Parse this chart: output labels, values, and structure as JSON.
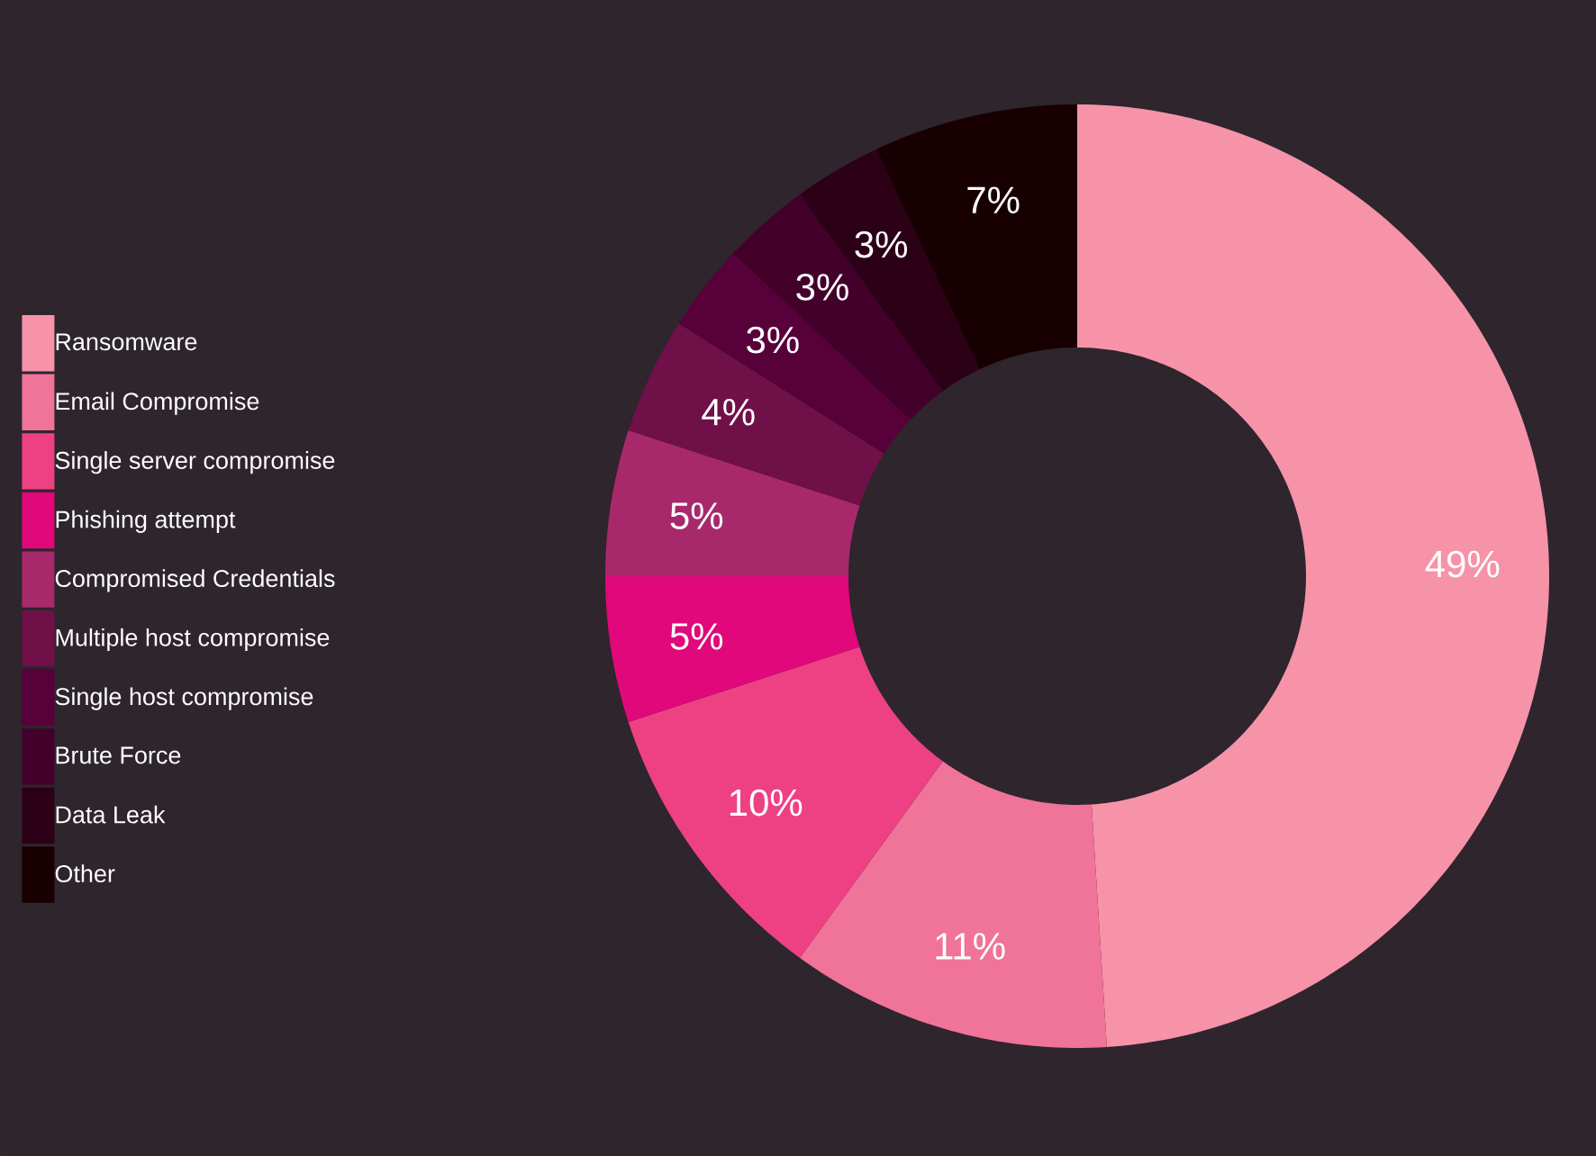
{
  "chart_data": {
    "type": "donut",
    "categories": [
      "Ransomware",
      "Email Compromise",
      "Single server compromise",
      "Phishing attempt",
      "Compromised Credentials",
      "Multiple host compromise",
      "Single host compromise",
      "Brute Force",
      "Data Leak",
      "Other"
    ],
    "values": [
      49,
      11,
      10,
      5,
      5,
      4,
      3,
      3,
      3,
      7
    ],
    "value_labels": [
      "49%",
      "11%",
      "10%",
      "5%",
      "5%",
      "4%",
      "3%",
      "3%",
      "3%",
      "7%"
    ],
    "colors": [
      "#f693a9",
      "#f07399",
      "#ee4183",
      "#e0087a",
      "#a8296b",
      "#701048",
      "#58003a",
      "#42002a",
      "#2c0016",
      "#180002"
    ],
    "legend": "left"
  }
}
